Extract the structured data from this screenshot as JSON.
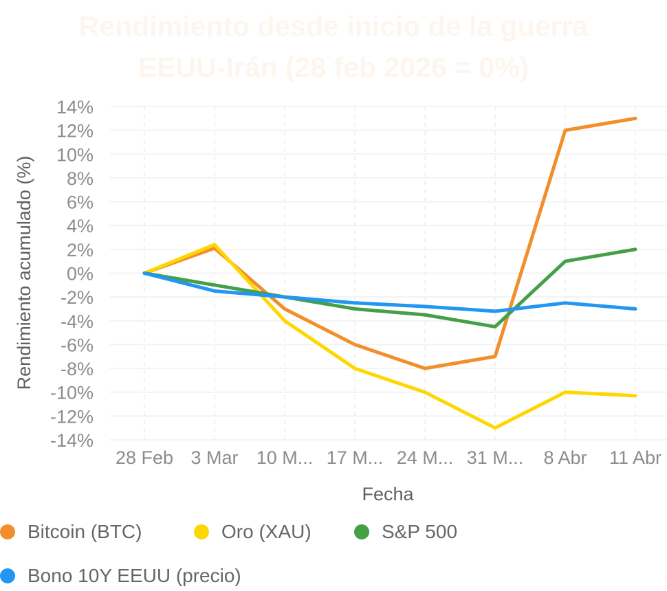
{
  "chart_data": {
    "type": "line",
    "title_line1": "Rendimiento desde inicio de la guerra",
    "title_line2": "EEUU-Irán (28 feb 2026 = 0%)",
    "xlabel": "Fecha",
    "ylabel": "Rendimiento acumulado (%)",
    "categories": [
      "28 Feb",
      "3 Mar",
      "10 M...",
      "17 M...",
      "24 M...",
      "31 M...",
      "8 Abr",
      "11 Abr"
    ],
    "yticks": [
      "14%",
      "12%",
      "10%",
      "8%",
      "6%",
      "4%",
      "2%",
      "0%",
      "-2%",
      "-4%",
      "-6%",
      "-8%",
      "-10%",
      "-12%",
      "-14%"
    ],
    "ylim": [
      -14,
      14
    ],
    "grid": true,
    "legend_position": "bottom",
    "series": [
      {
        "name": "Bitcoin (BTC)",
        "color": "#f28e2b",
        "values": [
          0,
          2.1,
          -3.0,
          -6.0,
          -8.0,
          -7.0,
          12.0,
          13.0
        ]
      },
      {
        "name": "Oro (XAU)",
        "color": "#ffd700",
        "values": [
          0,
          2.4,
          -4.0,
          -8.0,
          -10.0,
          -13.0,
          -10.0,
          -10.3
        ]
      },
      {
        "name": "S&P 500",
        "color": "#43a047",
        "values": [
          0,
          -1.0,
          -2.0,
          -3.0,
          -3.5,
          -4.5,
          1.0,
          2.0
        ]
      },
      {
        "name": "Bono 10Y EEUU (precio)",
        "color": "#2196f3",
        "values": [
          0,
          -1.5,
          -2.0,
          -2.5,
          -2.8,
          -3.2,
          -2.5,
          -3.0
        ]
      }
    ]
  }
}
